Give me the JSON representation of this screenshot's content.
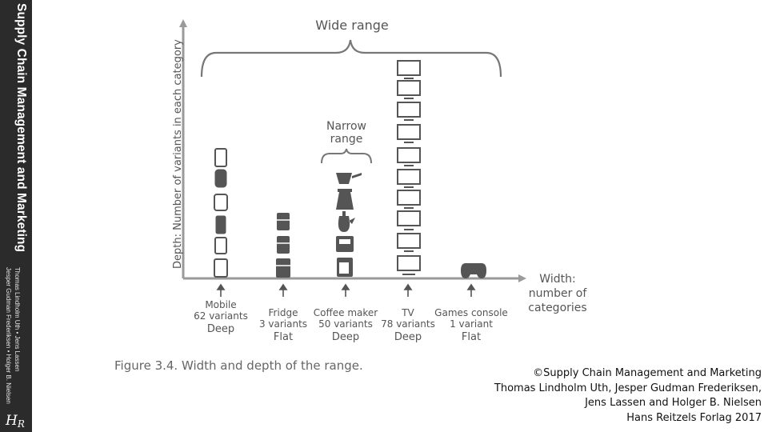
{
  "book": {
    "title": "Supply Chain Management and Marketing",
    "authors_line1": "Thomas Lindholm Uth • Jens Lassen",
    "authors_line2": "Jesper Gudman Frederiksen • Holger B. Nielsen",
    "publisher_logo": "HR"
  },
  "figure": {
    "y_axis_label": "Depth: Number of variants in each category",
    "x_axis_label": [
      "Width:",
      "number of",
      "categories"
    ],
    "wide_label": "Wide range",
    "narrow_label": [
      "Narrow",
      "range"
    ],
    "categories": [
      {
        "name": "Mobile",
        "variants": "62 variants",
        "depth": "Deep",
        "icon": "mobile-phone-icon",
        "stack": 6
      },
      {
        "name": "Fridge",
        "variants": "3 variants",
        "depth": "Flat",
        "icon": "fridge-icon",
        "stack": 3
      },
      {
        "name": "Coffee maker",
        "variants": "50 variants",
        "depth": "Deep",
        "icon": "coffee-maker-icon",
        "stack": 5
      },
      {
        "name": "TV",
        "variants": "78 variants",
        "depth": "Deep",
        "icon": "tv-icon",
        "stack": 11
      },
      {
        "name": "Games console",
        "variants": "1 variant",
        "depth": "Flat",
        "icon": "gamepad-icon",
        "stack": 1
      }
    ],
    "caption": "Figure 3.4. Width and depth of the range."
  },
  "credit": [
    "©Supply Chain Management and Marketing",
    "Thomas Lindholm Uth, Jesper Gudman Frederiksen,",
    "Jens Lassen and Holger B. Nielsen",
    "Hans Reitzels Forlag 2017"
  ]
}
